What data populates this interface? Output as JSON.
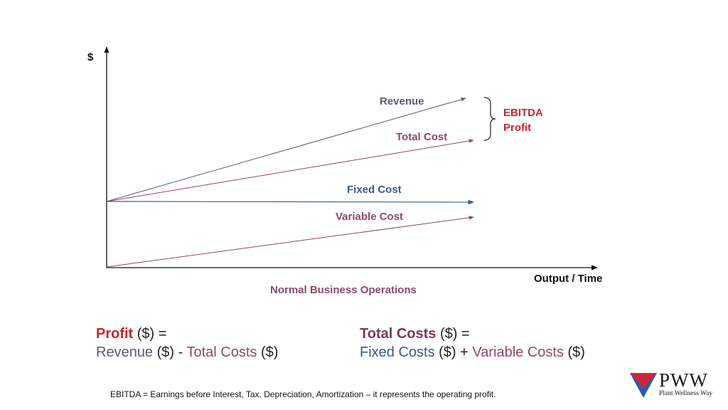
{
  "diagram": {
    "y_axis_label": "$",
    "x_axis_label": "Output / Time",
    "caption": "Normal Business Operations",
    "lines": {
      "revenue": "Revenue",
      "total_cost": "Total Cost",
      "fixed_cost": "Fixed Cost",
      "variable_cost": "Variable Cost"
    },
    "bracket_label_line1": "EBITDA",
    "bracket_label_line2": "Profit"
  },
  "formulas": {
    "profit": {
      "term": "Profit",
      "unit": " ($)  =",
      "revenue": "Revenue",
      "revenue_unit": " ($)  -  ",
      "total_costs": "Total Costs",
      "total_costs_unit": " ($)"
    },
    "total_costs": {
      "term": "Total Costs",
      "unit": " ($)  =",
      "fixed": "Fixed Costs",
      "fixed_unit": " ($)  +  ",
      "variable": "Variable Costs",
      "variable_unit": " ($)"
    }
  },
  "footnote": "EBITDA = Earnings before Interest,  Tax,  Depreciation, Amortization – it represents the operating profit.",
  "logo": {
    "name": "PWW",
    "tagline": "Plant Wellness Way"
  },
  "colors": {
    "revenue": "#5a5a78",
    "cost": "#8a4a6a",
    "fixed": "#3a5b8c",
    "ebitda": "#c0282e",
    "axis": "#111111"
  }
}
